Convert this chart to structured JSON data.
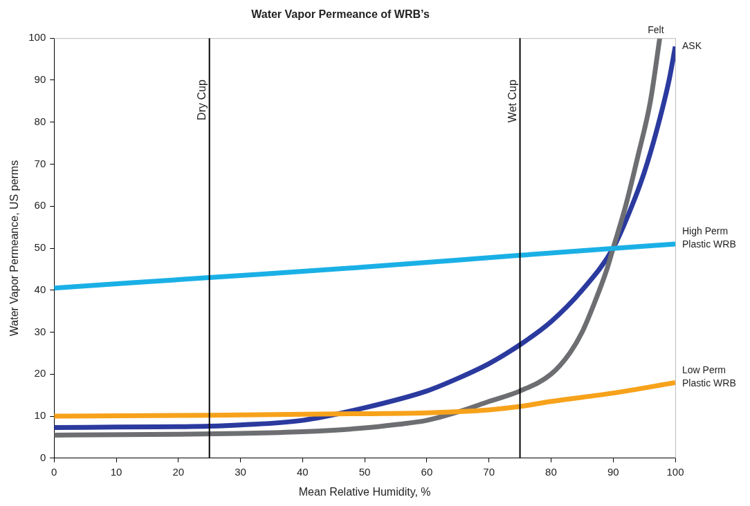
{
  "chart_data": {
    "type": "line",
    "title": "Water Vapor Permeance of WRB’s",
    "xlabel": "Mean Relative Humidity, %",
    "ylabel": "Water Vapor Permeance, US perms",
    "xlim": [
      0,
      100
    ],
    "xticks": [
      0,
      10,
      20,
      30,
      40,
      50,
      60,
      70,
      80,
      90,
      100
    ],
    "ylim": [
      0,
      100
    ],
    "yticks": [
      0,
      10,
      20,
      30,
      40,
      50,
      60,
      70,
      80,
      90,
      100
    ],
    "grid": false,
    "legend": false,
    "marker": "none",
    "line_style": "solid",
    "series": [
      {
        "name": "High Perm Plastic WRB",
        "color": "#1ab0e6",
        "x": [
          0,
          25,
          50,
          75,
          100
        ],
        "values": [
          40.5,
          43,
          45.5,
          48.3,
          51
        ]
      },
      {
        "name": "Low Perm Plastic WRB",
        "color": "#f7a21b",
        "x": [
          0,
          25,
          50,
          60,
          70,
          75,
          80,
          90,
          100
        ],
        "values": [
          10,
          10.2,
          10.6,
          10.8,
          11.5,
          12.3,
          13.5,
          15.5,
          18
        ]
      },
      {
        "name": "Felt",
        "color": "#6d6e71",
        "x": [
          0,
          20,
          30,
          40,
          50,
          55,
          60,
          65,
          70,
          75,
          80,
          83,
          85,
          87,
          89,
          90,
          92,
          94,
          96,
          97.5
        ],
        "values": [
          5.5,
          5.7,
          5.9,
          6.3,
          7.2,
          8,
          9,
          11,
          13.5,
          16,
          20,
          25,
          30,
          37,
          45,
          50,
          60,
          72,
          85,
          100
        ]
      },
      {
        "name": "ASK",
        "color": "#2b3a9e",
        "x": [
          0,
          10,
          20,
          25,
          30,
          40,
          50,
          60,
          65,
          70,
          75,
          80,
          85,
          90,
          93,
          95,
          97,
          99,
          100
        ],
        "values": [
          7.3,
          7.4,
          7.5,
          7.6,
          7.9,
          9,
          12,
          16,
          19,
          22.5,
          27,
          32.5,
          40,
          50,
          60,
          68,
          78,
          90,
          98
        ]
      }
    ],
    "ref_lines": [
      {
        "axis": "x",
        "value": 25,
        "label": "Dry Cup",
        "color": "#000000"
      },
      {
        "axis": "x",
        "value": 75,
        "label": "Wet Cup",
        "color": "#000000"
      }
    ]
  }
}
